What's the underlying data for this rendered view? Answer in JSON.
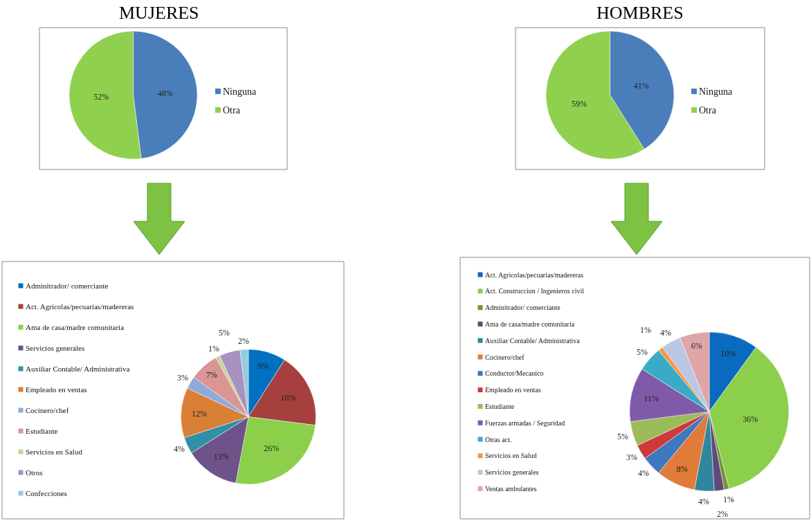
{
  "chart_data": [
    {
      "type": "pie",
      "title": "MUJERES",
      "categories": [
        "Ninguna",
        "Otra"
      ],
      "values": [
        48,
        52
      ],
      "value_labels": [
        "48%",
        "52%"
      ],
      "colors": [
        "#4a7ebb",
        "#8fd14f"
      ],
      "legend": "right"
    },
    {
      "type": "pie",
      "title": "HOMBRES",
      "categories": [
        "Ninguna",
        "Otra"
      ],
      "values": [
        41,
        59
      ],
      "value_labels": [
        "41%",
        "59%"
      ],
      "colors": [
        "#4a7ebb",
        "#8fd14f"
      ],
      "legend": "right"
    },
    {
      "type": "pie",
      "categories": [
        "Adminitrador/ comerciante",
        "Act. Agricolas/pecuarias/madereras",
        "Ama de casa/madre comunitaria",
        "Servicios generales",
        "Auxiliar Contable/ Administrativa",
        "Empleado en ventas",
        "Cocinero/chef",
        "Estudiante",
        "Servicios en Salud",
        "Otros",
        "Confecciones"
      ],
      "values": [
        9,
        18,
        26,
        13,
        4,
        12,
        3,
        7,
        1,
        5,
        2
      ],
      "value_labels": [
        "9%",
        "18%",
        "26%",
        "13%",
        "4%",
        "12%",
        "3%",
        "7%",
        "1%",
        "5%",
        "2%"
      ],
      "colors": [
        "#0070c0",
        "#a5403f",
        "#8ccf4b",
        "#6e528a",
        "#3190a5",
        "#d97f36",
        "#8eaadb",
        "#d99694",
        "#c3d69b",
        "#a892c0",
        "#93cddd"
      ],
      "legend": "left"
    },
    {
      "type": "pie",
      "categories": [
        "Act. Agricolas/pecuarias/madereras",
        "Act. Construccion / Ingenieros civil",
        "Adminitrador/ comerciante",
        "Ama de casa/madre comunitaria",
        "Auxiliar Contable/ Administrativa",
        "Cocinero/chef",
        "Conductor/Mecanico",
        "Empleado en ventas",
        "Estudiante",
        "Fuerzas armadas / Seguridad",
        "Otras act.",
        "Servicios en Salud",
        "Servicios generales",
        "Ventas ambulantes"
      ],
      "values": [
        10,
        36,
        1,
        2,
        4,
        8,
        4,
        3,
        5,
        11,
        5,
        1,
        4,
        6
      ],
      "value_labels": [
        "10%",
        "36%",
        "1%",
        "2%",
        "4%",
        "8%",
        "4%",
        "3%",
        "5%",
        "11%",
        "5%",
        "1%",
        "4%",
        "6%"
      ],
      "colors": [
        "#0a6abf",
        "#8ccf4b",
        "#77933c",
        "#604a7b",
        "#31859c",
        "#e07b39",
        "#3f78c0",
        "#d0393a",
        "#9bbb59",
        "#7f5aa8",
        "#3aabc6",
        "#f79646",
        "#b9c7e3",
        "#e0a5a9"
      ],
      "legend": "left"
    }
  ]
}
